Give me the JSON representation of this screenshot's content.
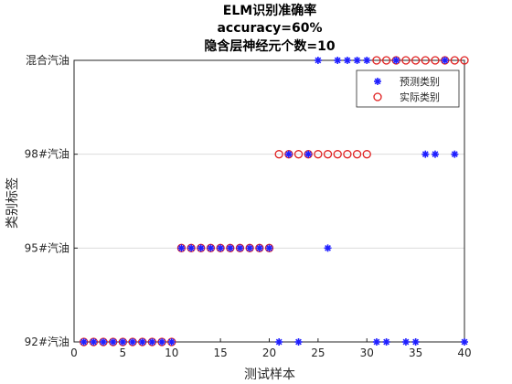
{
  "chart_data": {
    "type": "scatter",
    "title_lines": [
      "ELM识别准确率",
      "accuracy=60%",
      "隐含层神经元个数=10"
    ],
    "xlabel": "测试样本",
    "ylabel": "类别标签",
    "xlim": [
      0,
      40
    ],
    "ylim": [
      1,
      4
    ],
    "xticks": [
      0,
      5,
      10,
      15,
      20,
      25,
      30,
      35,
      40
    ],
    "yticks": [
      {
        "value": 1,
        "label": "92#汽油"
      },
      {
        "value": 2,
        "label": "95#汽油"
      },
      {
        "value": 3,
        "label": "98#汽油"
      },
      {
        "value": 4,
        "label": "混合汽油"
      }
    ],
    "grid_y": true,
    "legend": {
      "position": "top-right"
    },
    "series": [
      {
        "name": "预测类别",
        "marker": "asterisk",
        "color": "#1f1fff",
        "x": [
          1,
          2,
          3,
          4,
          5,
          6,
          7,
          8,
          9,
          10,
          11,
          12,
          13,
          14,
          15,
          16,
          17,
          18,
          19,
          20,
          21,
          22,
          23,
          24,
          25,
          26,
          27,
          28,
          29,
          30,
          31,
          32,
          33,
          34,
          35,
          36,
          37,
          38,
          39,
          40
        ],
        "y": [
          1,
          1,
          1,
          1,
          1,
          1,
          1,
          1,
          1,
          1,
          2,
          2,
          2,
          2,
          2,
          2,
          2,
          2,
          2,
          2,
          1,
          3,
          1,
          3,
          4,
          2,
          4,
          4,
          4,
          4,
          1,
          1,
          4,
          1,
          1,
          3,
          3,
          4,
          3,
          1
        ]
      },
      {
        "name": "实际类别",
        "marker": "circle",
        "color": "#e02020",
        "x": [
          1,
          2,
          3,
          4,
          5,
          6,
          7,
          8,
          9,
          10,
          11,
          12,
          13,
          14,
          15,
          16,
          17,
          18,
          19,
          20,
          21,
          22,
          23,
          24,
          25,
          26,
          27,
          28,
          29,
          30,
          31,
          32,
          33,
          34,
          35,
          36,
          37,
          38,
          39,
          40
        ],
        "y": [
          1,
          1,
          1,
          1,
          1,
          1,
          1,
          1,
          1,
          1,
          2,
          2,
          2,
          2,
          2,
          2,
          2,
          2,
          2,
          2,
          3,
          3,
          3,
          3,
          3,
          3,
          3,
          3,
          3,
          3,
          4,
          4,
          4,
          4,
          4,
          4,
          4,
          4,
          4,
          4
        ]
      }
    ]
  }
}
